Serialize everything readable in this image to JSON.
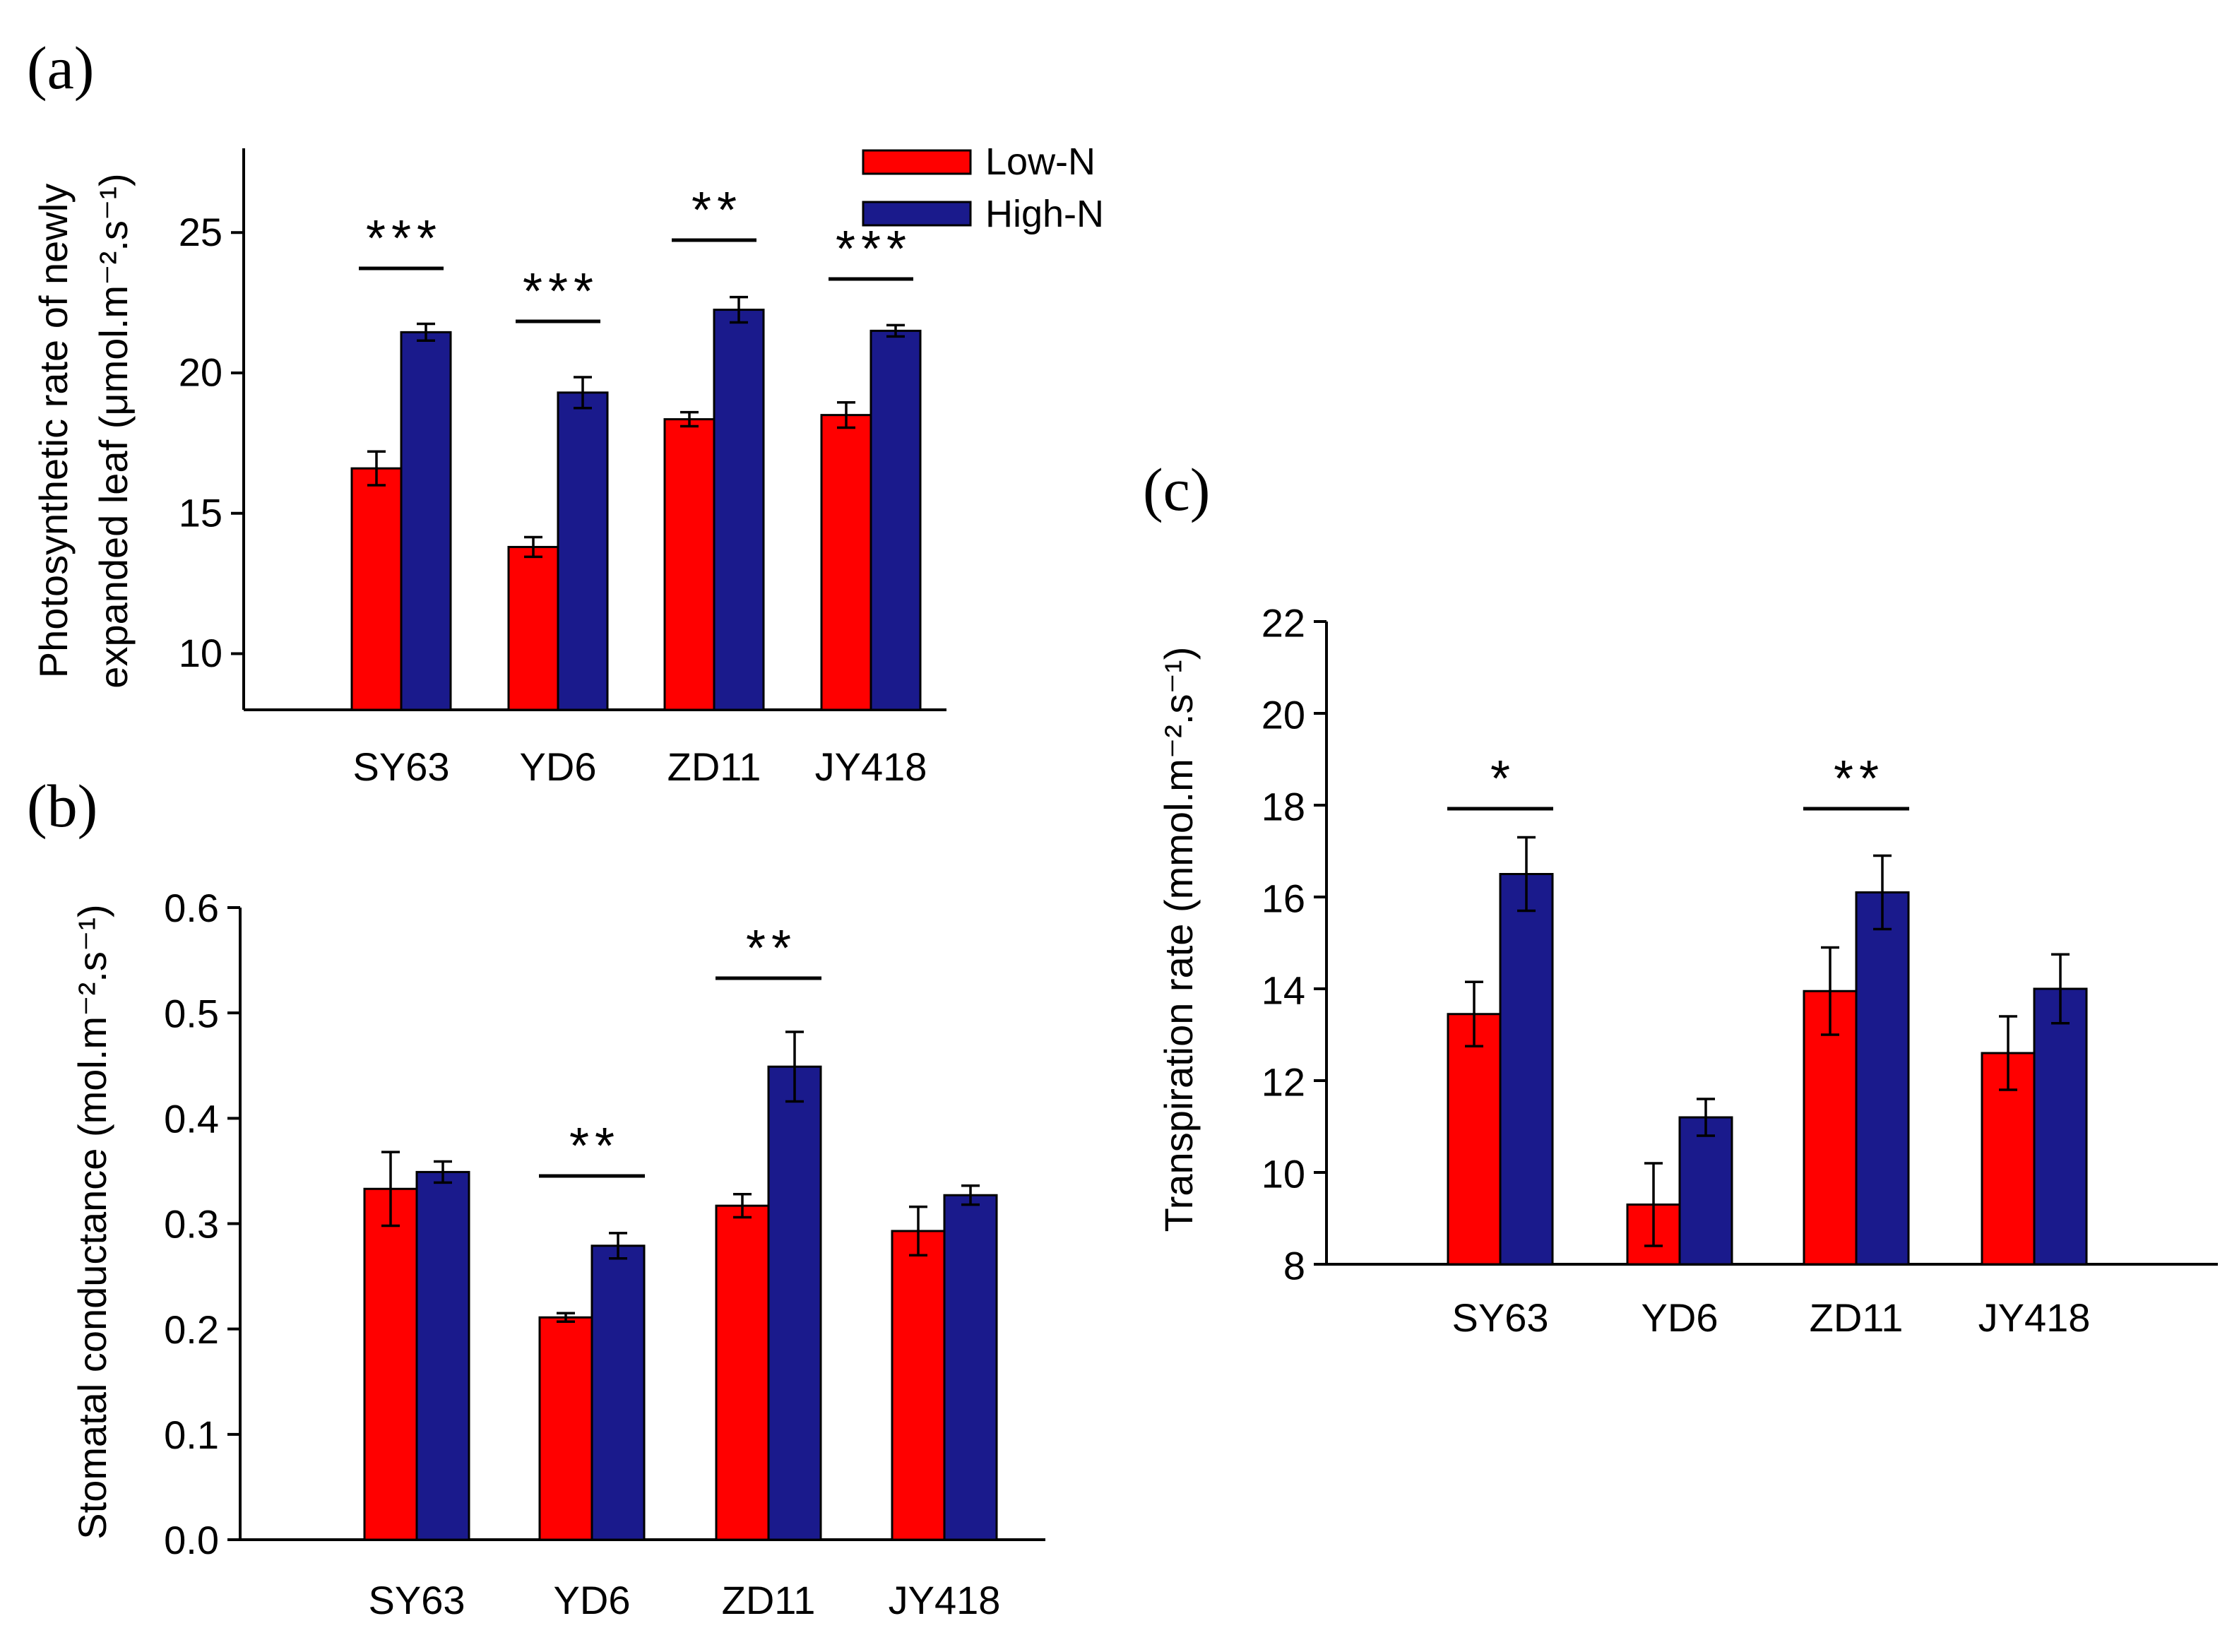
{
  "legend": {
    "low_label": "Low-N",
    "high_label": "High-N"
  },
  "colors": {
    "low": "#ff0000",
    "high": "#1a1a8c"
  },
  "chart_data": [
    {
      "id": "a",
      "type": "bar",
      "panel_label": "(a)",
      "categories": [
        "SY63",
        "YD6",
        "ZD11",
        "JY418"
      ],
      "series": [
        {
          "name": "Low-N",
          "values": [
            16.6,
            13.8,
            18.35,
            18.5
          ],
          "errors": [
            0.6,
            0.35,
            0.25,
            0.45
          ]
        },
        {
          "name": "High-N",
          "values": [
            21.45,
            19.3,
            22.25,
            21.5
          ],
          "errors": [
            0.3,
            0.55,
            0.45,
            0.2
          ]
        }
      ],
      "significance": [
        "***",
        "***",
        "**",
        "***"
      ],
      "ylabel_line1": "Photosynthetic rate of newly",
      "ylabel_line2": "expanded leaf (μmol.m⁻².s⁻¹)",
      "ylim": [
        8,
        28
      ],
      "yticks": [
        "10",
        "15",
        "20",
        "25"
      ],
      "legend_position": "top-right"
    },
    {
      "id": "b",
      "type": "bar",
      "panel_label": "(b)",
      "categories": [
        "SY63",
        "YD6",
        "ZD11",
        "JY418"
      ],
      "series": [
        {
          "name": "Low-N",
          "values": [
            0.333,
            0.211,
            0.317,
            0.293
          ],
          "errors": [
            0.035,
            0.004,
            0.011,
            0.023
          ]
        },
        {
          "name": "High-N",
          "values": [
            0.349,
            0.279,
            0.449,
            0.327
          ],
          "errors": [
            0.01,
            0.012,
            0.033,
            0.009
          ]
        }
      ],
      "significance": [
        "",
        "**",
        "**",
        ""
      ],
      "ylabel": "Stomatal conductance (mol.m⁻².s⁻¹)",
      "ylim": [
        0,
        0.6
      ],
      "yticks": [
        "0.0",
        "0.1",
        "0.2",
        "0.3",
        "0.4",
        "0.5",
        "0.6"
      ]
    },
    {
      "id": "c",
      "type": "bar",
      "panel_label": "(c)",
      "categories": [
        "SY63",
        "YD6",
        "ZD11",
        "JY418"
      ],
      "series": [
        {
          "name": "Low-N",
          "values": [
            13.45,
            9.3,
            13.95,
            12.6
          ],
          "errors": [
            0.7,
            0.9,
            0.95,
            0.8
          ]
        },
        {
          "name": "High-N",
          "values": [
            16.5,
            11.2,
            16.1,
            14.0
          ],
          "errors": [
            0.8,
            0.4,
            0.8,
            0.75
          ]
        }
      ],
      "significance": [
        "*",
        "",
        "**",
        ""
      ],
      "ylabel": "Transpiration rate (mmol.m⁻².s⁻¹)",
      "ylim": [
        8,
        22
      ],
      "yticks": [
        "8",
        "10",
        "12",
        "14",
        "16",
        "18",
        "20",
        "22"
      ]
    }
  ]
}
